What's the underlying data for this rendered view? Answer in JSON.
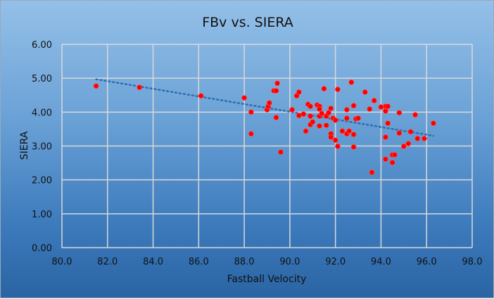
{
  "chart_data": {
    "type": "scatter",
    "title": "FBv vs. SIERA",
    "xlabel": "Fastball Velocity",
    "ylabel": "SIERA",
    "xlim": [
      80,
      98
    ],
    "ylim": [
      0,
      6
    ],
    "x_ticks": [
      "80.0",
      "82.0",
      "84.0",
      "86.0",
      "88.0",
      "90.0",
      "92.0",
      "94.0",
      "96.0",
      "98.0"
    ],
    "y_ticks": [
      "0.00",
      "1.00",
      "2.00",
      "3.00",
      "4.00",
      "5.00",
      "6.00"
    ],
    "grid": true,
    "marker_color": "#ff0000",
    "trendline": {
      "type": "linear",
      "style": "dotted",
      "color": "#2e6db0",
      "x": [
        81.5,
        96.3
      ],
      "y": [
        4.97,
        3.3
      ]
    },
    "points": [
      [
        81.5,
        4.77
      ],
      [
        83.4,
        4.73
      ],
      [
        86.1,
        4.48
      ],
      [
        88.0,
        4.42
      ],
      [
        88.3,
        4.0
      ],
      [
        88.3,
        3.36
      ],
      [
        89.0,
        4.07
      ],
      [
        89.05,
        4.17
      ],
      [
        89.1,
        4.27
      ],
      [
        89.3,
        4.63
      ],
      [
        89.4,
        4.63
      ],
      [
        89.45,
        4.85
      ],
      [
        89.4,
        3.84
      ],
      [
        89.6,
        2.82
      ],
      [
        90.1,
        4.07
      ],
      [
        90.3,
        4.48
      ],
      [
        90.4,
        4.59
      ],
      [
        90.4,
        3.9
      ],
      [
        90.6,
        3.94
      ],
      [
        90.7,
        3.44
      ],
      [
        90.8,
        4.23
      ],
      [
        90.9,
        4.17
      ],
      [
        90.9,
        3.88
      ],
      [
        90.9,
        3.63
      ],
      [
        91.0,
        3.71
      ],
      [
        91.2,
        4.21
      ],
      [
        91.3,
        4.17
      ],
      [
        91.3,
        4.09
      ],
      [
        91.3,
        3.88
      ],
      [
        91.3,
        3.59
      ],
      [
        91.4,
        3.96
      ],
      [
        91.5,
        4.69
      ],
      [
        91.6,
        3.88
      ],
      [
        91.6,
        3.61
      ],
      [
        91.7,
        3.98
      ],
      [
        91.8,
        4.11
      ],
      [
        91.8,
        3.36
      ],
      [
        91.8,
        3.26
      ],
      [
        91.9,
        3.82
      ],
      [
        92.0,
        3.76
      ],
      [
        92.0,
        3.17
      ],
      [
        92.1,
        4.67
      ],
      [
        92.1,
        2.99
      ],
      [
        92.3,
        3.44
      ],
      [
        92.5,
        4.07
      ],
      [
        92.5,
        3.82
      ],
      [
        92.5,
        3.36
      ],
      [
        92.6,
        3.44
      ],
      [
        92.7,
        4.88
      ],
      [
        92.8,
        4.19
      ],
      [
        92.8,
        3.34
      ],
      [
        92.8,
        2.97
      ],
      [
        92.9,
        3.8
      ],
      [
        93.0,
        3.82
      ],
      [
        93.3,
        4.59
      ],
      [
        93.5,
        4.09
      ],
      [
        93.6,
        2.22
      ],
      [
        93.7,
        4.34
      ],
      [
        94.0,
        4.15
      ],
      [
        94.2,
        4.17
      ],
      [
        94.3,
        4.17
      ],
      [
        94.2,
        4.03
      ],
      [
        94.2,
        3.26
      ],
      [
        94.2,
        2.61
      ],
      [
        94.3,
        3.67
      ],
      [
        94.5,
        2.74
      ],
      [
        94.6,
        2.74
      ],
      [
        94.5,
        2.51
      ],
      [
        94.8,
        3.98
      ],
      [
        94.8,
        3.38
      ],
      [
        95.0,
        2.99
      ],
      [
        95.2,
        3.07
      ],
      [
        95.3,
        3.42
      ],
      [
        95.5,
        3.92
      ],
      [
        95.6,
        3.22
      ],
      [
        95.9,
        3.22
      ],
      [
        96.3,
        3.67
      ]
    ]
  }
}
